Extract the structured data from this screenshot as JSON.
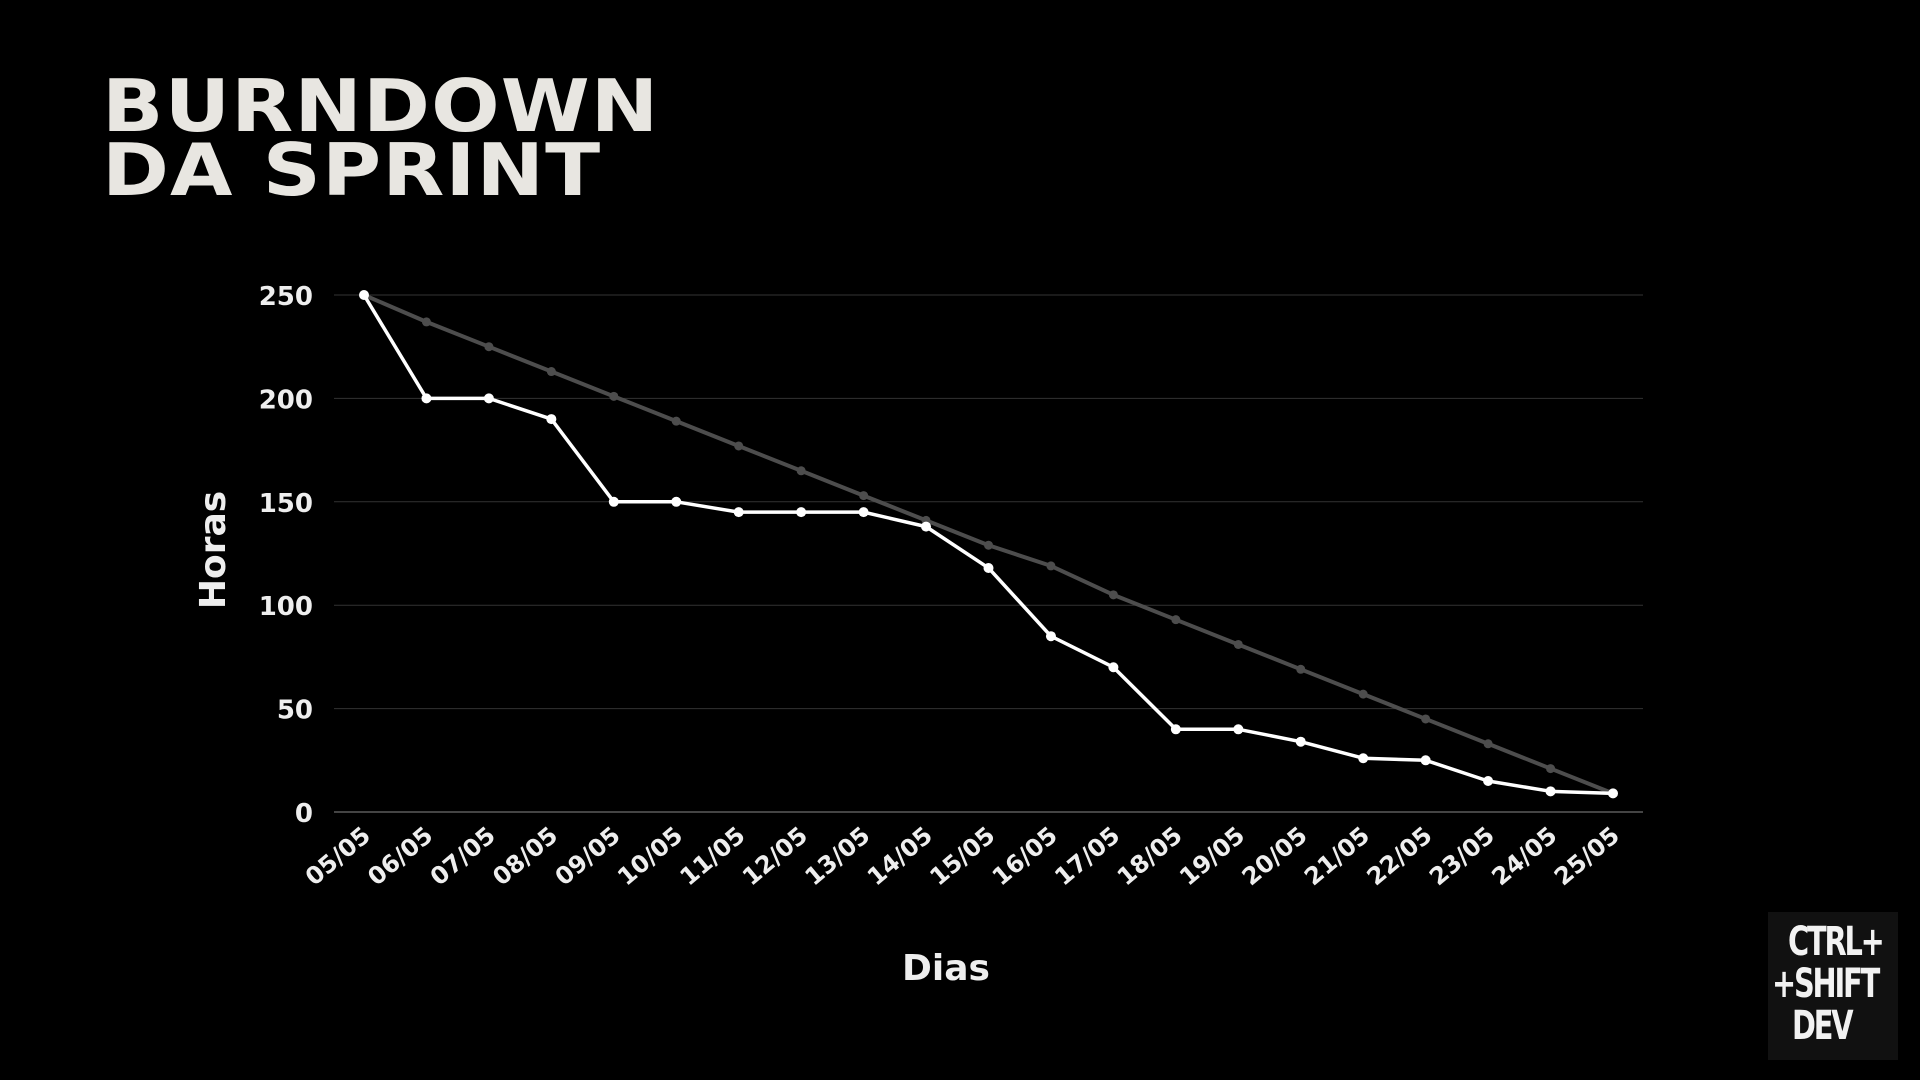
{
  "title": {
    "line1": "BURNDOWN",
    "line2": "DA SPRINT"
  },
  "logo": {
    "line1": "CTRL+",
    "line2": "+SHIFT",
    "line3": "DEV"
  },
  "colors": {
    "background": "#000000",
    "actual_line": "#ffffff",
    "ideal_line": "#4d4d4d",
    "grid": "#333333",
    "text": "#eeeeee"
  },
  "chart_data": {
    "type": "line",
    "xlabel": "Dias",
    "ylabel": "Horas",
    "ylim": [
      0,
      250
    ],
    "yticks": [
      0,
      50,
      100,
      150,
      200,
      250
    ],
    "grid": true,
    "categories": [
      "05/05",
      "06/05",
      "07/05",
      "08/05",
      "09/05",
      "10/05",
      "11/05",
      "12/05",
      "13/05",
      "14/05",
      "15/05",
      "16/05",
      "17/05",
      "18/05",
      "19/05",
      "20/05",
      "21/05",
      "22/05",
      "23/05",
      "24/05",
      "25/05"
    ],
    "series": [
      {
        "role": "ideal",
        "values": [
          250,
          237,
          225,
          213,
          201,
          189,
          177,
          165,
          153,
          141,
          129,
          119,
          105,
          93,
          81,
          69,
          57,
          45,
          33,
          21,
          9
        ]
      },
      {
        "role": "actual",
        "values": [
          250,
          200,
          200,
          190,
          150,
          150,
          145,
          145,
          145,
          138,
          118,
          85,
          70,
          40,
          40,
          34,
          26,
          25,
          15,
          10,
          9
        ]
      }
    ]
  }
}
